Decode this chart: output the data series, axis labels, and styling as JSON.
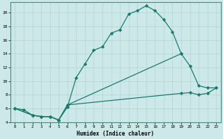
{
  "xlabel": "Humidex (Indice chaleur)",
  "background_color": "#cce8e8",
  "line_color": "#1a7a6e",
  "grid_color": "#b0d4d4",
  "xlim": [
    -0.5,
    23.5
  ],
  "ylim": [
    4,
    21.5
  ],
  "xticks": [
    0,
    1,
    2,
    3,
    4,
    5,
    6,
    7,
    8,
    9,
    10,
    11,
    12,
    13,
    14,
    15,
    16,
    17,
    18,
    19,
    20,
    21,
    22,
    23
  ],
  "yticks": [
    4,
    6,
    8,
    10,
    12,
    14,
    16,
    18,
    20
  ],
  "line1_x": [
    0,
    1,
    2,
    3,
    4,
    5,
    6,
    7,
    8,
    9,
    10,
    11,
    12,
    13,
    14,
    15,
    16,
    17,
    18,
    19
  ],
  "line1_y": [
    6.0,
    5.8,
    5.0,
    4.8,
    4.8,
    4.3,
    6.2,
    10.5,
    12.5,
    14.5,
    15.0,
    17.0,
    17.5,
    19.8,
    20.3,
    21.0,
    20.3,
    19.0,
    17.2,
    14.0
  ],
  "line2_x": [
    0,
    2,
    3,
    4,
    5,
    6,
    19,
    20,
    21,
    22,
    23
  ],
  "line2_y": [
    6.0,
    5.0,
    4.8,
    4.8,
    4.3,
    6.5,
    14.0,
    12.2,
    9.3,
    9.0,
    9.0
  ],
  "line3_x": [
    0,
    2,
    3,
    4,
    5,
    6,
    19,
    20,
    21,
    22,
    23
  ],
  "line3_y": [
    6.0,
    5.0,
    4.8,
    4.8,
    4.3,
    6.5,
    8.2,
    8.3,
    8.0,
    8.2,
    9.0
  ]
}
